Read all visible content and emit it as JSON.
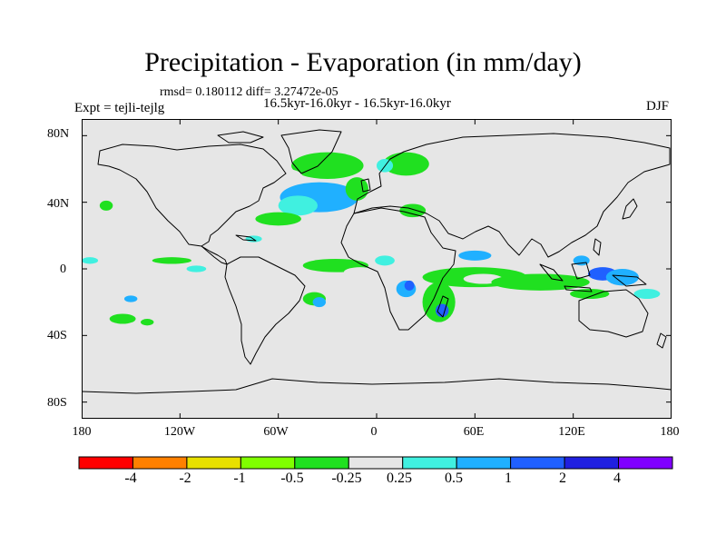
{
  "title": "Precipitation - Evaporation (in mm/day)",
  "stats": "rmsd= 0.180112 diff= 3.27472e-05",
  "period": "16.5kyr-16.0kyr - 16.5kyr-16.0kyr",
  "experiment": "Expt = tejli-tejlg",
  "season": "DJF",
  "map": {
    "background_color": "#e6e6e6",
    "lon_range": [
      -180,
      180
    ],
    "lat_range": [
      -90,
      90
    ],
    "lat_ticks": [
      {
        "value": 80,
        "label": "80N"
      },
      {
        "value": 40,
        "label": "40N"
      },
      {
        "value": 0,
        "label": "0"
      },
      {
        "value": -40,
        "label": "40S"
      },
      {
        "value": -80,
        "label": "80S"
      }
    ],
    "lon_ticks": [
      {
        "value": -180,
        "label": "180"
      },
      {
        "value": -120,
        "label": "120W"
      },
      {
        "value": -60,
        "label": "60W"
      },
      {
        "value": 0,
        "label": "0"
      },
      {
        "value": 60,
        "label": "60E"
      },
      {
        "value": 120,
        "label": "120E"
      },
      {
        "value": 180,
        "label": "180"
      }
    ],
    "anomaly_patches": [
      {
        "region": "north-atlantic",
        "lon": -35,
        "lat": 42,
        "rlon": 14,
        "rlat": 5,
        "level": 1
      },
      {
        "region": "north-atlantic",
        "lon": -35,
        "lat": 43,
        "rlon": 24,
        "rlat": 9,
        "level": 0.5
      },
      {
        "region": "north-atlantic",
        "lon": -48,
        "lat": 38,
        "rlon": 12,
        "rlat": 6,
        "level": 0.25
      },
      {
        "region": "north-atlantic-north",
        "lon": -30,
        "lat": 62,
        "rlon": 22,
        "rlat": 8,
        "level": -0.5
      },
      {
        "region": "labrador-sea",
        "lon": -55,
        "lat": 55,
        "rlon": 10,
        "rlat": 5,
        "level": -0.25
      },
      {
        "region": "north-atlantic-east",
        "lon": -12,
        "lat": 48,
        "rlon": 7,
        "rlat": 7,
        "level": -0.5
      },
      {
        "region": "scandinavia",
        "lon": 18,
        "lat": 63,
        "rlon": 14,
        "rlat": 7,
        "level": -0.5
      },
      {
        "region": "europe",
        "lon": 5,
        "lat": 62,
        "rlon": 5,
        "rlat": 4,
        "level": 0.25
      },
      {
        "region": "gulf-stream",
        "lon": -60,
        "lat": 30,
        "rlon": 14,
        "rlat": 4,
        "level": -0.5
      },
      {
        "region": "east-asia",
        "lon": 150,
        "lat": 42,
        "rlon": 8,
        "rlat": 4,
        "level": -0.25
      },
      {
        "region": "mediterranean",
        "lon": 22,
        "lat": 35,
        "rlon": 8,
        "rlat": 4,
        "level": -0.5
      },
      {
        "region": "mediterranean",
        "lon": 35,
        "lat": 36,
        "rlon": 5,
        "rlat": 3,
        "level": -0.25
      },
      {
        "region": "north-pacific",
        "lon": -165,
        "lat": 38,
        "rlon": 4,
        "rlat": 3,
        "level": -0.5
      },
      {
        "region": "north-pacific",
        "lon": -155,
        "lat": 28,
        "rlon": 4,
        "rlat": 2,
        "level": -0.25
      },
      {
        "region": "equatorial-atlantic",
        "lon": -25,
        "lat": 2,
        "rlon": 20,
        "rlat": 4,
        "level": -0.5
      },
      {
        "region": "equatorial-atlantic",
        "lon": -10,
        "lat": -2,
        "rlon": 10,
        "rlat": 3,
        "level": -0.25
      },
      {
        "region": "west-africa",
        "lon": 5,
        "lat": 5,
        "rlon": 6,
        "rlat": 3,
        "level": 0.25
      },
      {
        "region": "south-atlantic",
        "lon": -38,
        "lat": -18,
        "rlon": 7,
        "rlat": 4,
        "level": -0.5
      },
      {
        "region": "south-atlantic",
        "lon": -35,
        "lat": -20,
        "rlon": 4,
        "rlat": 3,
        "level": 0.5
      },
      {
        "region": "central-africa",
        "lon": 18,
        "lat": -12,
        "rlon": 6,
        "rlat": 5,
        "level": 0.5
      },
      {
        "region": "central-africa",
        "lon": 20,
        "lat": -10,
        "rlon": 3,
        "rlat": 3,
        "level": 1
      },
      {
        "region": "mozambique-channel",
        "lon": 38,
        "lat": -20,
        "rlon": 10,
        "rlat": 12,
        "level": -0.5
      },
      {
        "region": "mozambique-channel",
        "lon": 40,
        "lat": -25,
        "rlon": 4,
        "rlat": 4,
        "level": 1
      },
      {
        "region": "indian-ocean",
        "lon": 60,
        "lat": -5,
        "rlon": 32,
        "rlat": 6,
        "level": -0.5
      },
      {
        "region": "indian-ocean",
        "lon": 65,
        "lat": -6,
        "rlon": 12,
        "rlat": 3,
        "level": -0.25
      },
      {
        "region": "indian-ocean",
        "lon": 100,
        "lat": -8,
        "rlon": 30,
        "rlat": 5,
        "level": -0.5
      },
      {
        "region": "arabian-sea",
        "lon": 60,
        "lat": 8,
        "rlon": 10,
        "rlat": 3,
        "level": 0.5
      },
      {
        "region": "bay-of-bengal",
        "lon": 85,
        "lat": 5,
        "rlon": 8,
        "rlat": 3,
        "level": -0.25
      },
      {
        "region": "maritime-continent",
        "lon": 138,
        "lat": -3,
        "rlon": 9,
        "rlat": 4,
        "level": 1
      },
      {
        "region": "maritime-continent",
        "lon": 125,
        "lat": 5,
        "rlon": 5,
        "rlat": 3,
        "level": 0.5
      },
      {
        "region": "west-pacific",
        "lon": 150,
        "lat": -5,
        "rlon": 10,
        "rlat": 5,
        "level": 0.5
      },
      {
        "region": "north-australia",
        "lon": 130,
        "lat": -15,
        "rlon": 12,
        "rlat": 3,
        "level": -0.5
      },
      {
        "region": "south-pacific",
        "lon": 165,
        "lat": -15,
        "rlon": 8,
        "rlat": 3,
        "level": 0.25
      },
      {
        "region": "central-pacific",
        "lon": -175,
        "lat": 5,
        "rlon": 5,
        "rlat": 2,
        "level": 0.25
      },
      {
        "region": "east-pacific",
        "lon": -125,
        "lat": 5,
        "rlon": 12,
        "rlat": 2,
        "level": -0.5
      },
      {
        "region": "east-pacific",
        "lon": -110,
        "lat": 0,
        "rlon": 6,
        "rlat": 2,
        "level": 0.25
      },
      {
        "region": "east-pacific-south",
        "lon": -150,
        "lat": -18,
        "rlon": 4,
        "rlat": 2,
        "level": 0.5
      },
      {
        "region": "east-pacific-south",
        "lon": -155,
        "lat": -30,
        "rlon": 8,
        "rlat": 3,
        "level": -0.5
      },
      {
        "region": "east-pacific-south",
        "lon": -140,
        "lat": -32,
        "rlon": 4,
        "rlat": 2,
        "level": -0.5
      },
      {
        "region": "caribbean",
        "lon": -75,
        "lat": 18,
        "rlon": 5,
        "rlat": 2,
        "level": 0.25
      }
    ]
  },
  "colorbar": {
    "colors": [
      "#ff0000",
      "#ff8000",
      "#e8e000",
      "#80ff00",
      "#20e020",
      "#e6e6e6",
      "#40f0e0",
      "#20b0ff",
      "#2060ff",
      "#2020e0",
      "#8000ff"
    ],
    "labels": [
      "-4",
      "-2",
      "-1",
      "-0.5",
      "-0.25",
      "0.25",
      "0.5",
      "1",
      "2",
      "4"
    ],
    "levels": [
      -4,
      -2,
      -1,
      -0.5,
      -0.25,
      0.25,
      0.5,
      1,
      2,
      4
    ]
  }
}
